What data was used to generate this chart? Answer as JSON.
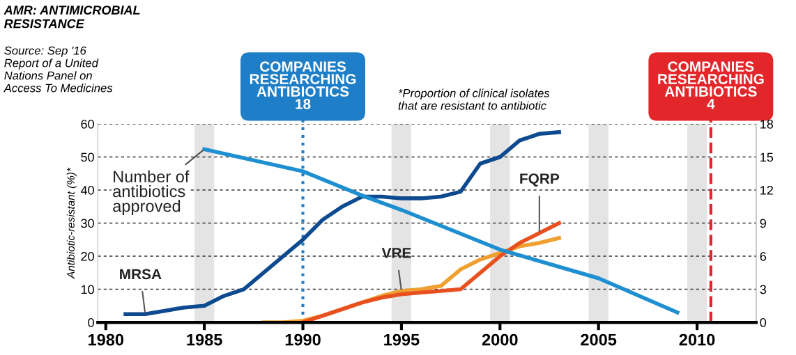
{
  "chart_data": {
    "type": "line",
    "title": "AMR: ANTIMICROBIAL\nRESISTANCE",
    "ylabel": "Antibiotic-resistant (%)*",
    "annotations": [
      "Source: Sep '16\nReport of a United\nNations Panel on\nAccess To Medicines",
      "*Proportion of clinical isolates\nthat are resistant to antibiotic"
    ],
    "series": [
      {
        "name": "MRSA",
        "color": "#0d4a8f",
        "x": [
          1981,
          1982,
          1983,
          1984,
          1985,
          1986,
          1987,
          1988,
          1989,
          1990,
          1991,
          1992,
          1993,
          1994,
          1995,
          1996,
          1997,
          1998,
          1999,
          2000,
          2001,
          2002,
          2003
        ],
        "values": [
          2.5,
          2.5,
          3.5,
          4.5,
          5,
          8,
          10,
          15,
          20,
          25,
          31,
          35,
          38,
          38,
          37.5,
          37.5,
          38,
          39.5,
          48,
          50,
          55,
          57,
          57.5
        ]
      },
      {
        "name": "VRE",
        "color": "#f0a030",
        "x": [
          1988,
          1989,
          1990,
          1991,
          1992,
          1993,
          1994,
          1995,
          1996,
          1997,
          1998,
          1999,
          2000,
          2001,
          2002,
          2003
        ],
        "values": [
          0,
          0,
          0.5,
          2,
          4,
          6,
          8,
          9.5,
          10,
          11,
          16,
          19,
          21,
          23,
          24,
          25.5
        ]
      },
      {
        "name": "FQRP",
        "color": "#e8501f",
        "x": [
          1990,
          1991,
          1992,
          1993,
          1994,
          1995,
          1996,
          1997,
          1998,
          1999,
          2000,
          2001,
          2002,
          2003
        ],
        "values": [
          0,
          2,
          4,
          6,
          7.5,
          8.5,
          9,
          9.5,
          10,
          15,
          20,
          24,
          27,
          30
        ]
      },
      {
        "name": "Number of\nantibiotics\napproved",
        "color": "#1e8fd0",
        "axis": "y2",
        "x": [
          1985,
          1990,
          1993,
          1995,
          2000,
          2005,
          2009
        ],
        "values": [
          15.7,
          13.7,
          11.5,
          10.2,
          6.6,
          4,
          0.9
        ]
      }
    ],
    "xlim": [
      1979.6,
      2013
    ],
    "xticks": [
      1980,
      1985,
      1990,
      1995,
      2000,
      2005,
      2010
    ],
    "ylim": [
      0,
      60
    ],
    "yticks": [
      0,
      10,
      20,
      30,
      40,
      50,
      60
    ],
    "y2lim": [
      0,
      18
    ],
    "y2ticks": [
      0,
      3,
      6,
      9,
      12,
      15,
      18
    ],
    "ref_lines": [
      {
        "axis": "x",
        "value": 1990,
        "label": "COMPANIES\nRESEARCHING\nANTIBIOTICS\n18",
        "color": "#1e7fc8",
        "line_style": "dotted"
      },
      {
        "axis": "x",
        "value": 2010.7,
        "label": "COMPANIES\nRESEARCHING\nANTIBIOTICS\n4",
        "color": "#e3262a",
        "line_style": "dashed"
      }
    ],
    "bands": [
      {
        "axis": "x",
        "from": 1984.5,
        "to": 1985.5,
        "color": "#e4e4e4"
      },
      {
        "axis": "x",
        "from": 1994.5,
        "to": 1995.5,
        "color": "#e4e4e4"
      },
      {
        "axis": "x",
        "from": 1999.5,
        "to": 2000.5,
        "color": "#e4e4e4"
      },
      {
        "axis": "x",
        "from": 2004.5,
        "to": 2005.5,
        "color": "#e4e4e4"
      },
      {
        "axis": "x",
        "from": 2009.5,
        "to": 2010.5,
        "color": "#e4e4e4"
      }
    ],
    "grid": "y",
    "line_style": "solid",
    "legend": false
  }
}
